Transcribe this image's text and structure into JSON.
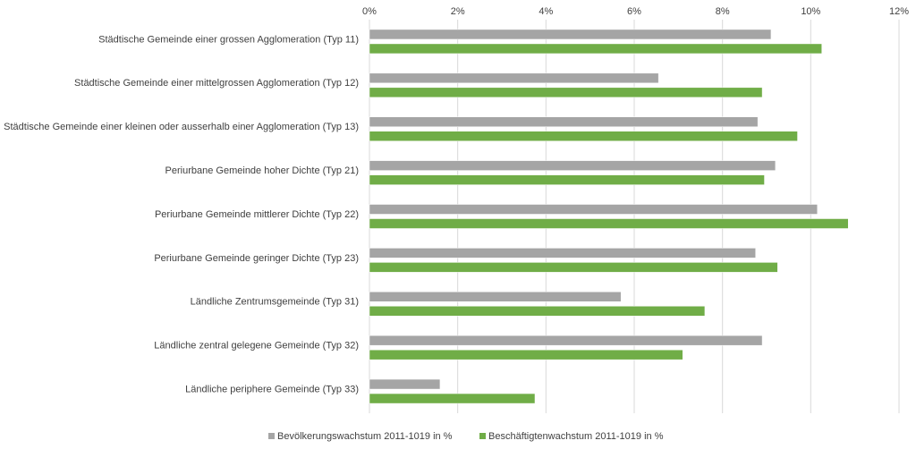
{
  "chart_data": {
    "type": "bar",
    "orientation": "horizontal",
    "categories": [
      "Städtische Gemeinde einer grossen Agglomeration (Typ 11)",
      "Städtische Gemeinde einer mittelgrossen Agglomeration (Typ 12)",
      "Städtische Gemeinde einer kleinen oder ausserhalb einer Agglomeration (Typ 13)",
      "Periurbane Gemeinde hoher Dichte (Typ 21)",
      "Periurbane Gemeinde mittlerer Dichte (Typ 22)",
      "Periurbane Gemeinde geringer Dichte (Typ 23)",
      "Ländliche Zentrumsgemeinde (Typ 31)",
      "Ländliche zentral gelegene Gemeinde (Typ 32)",
      "Ländliche periphere Gemeinde (Typ 33)"
    ],
    "series": [
      {
        "name": "Bevölkerungswachstum 2011-1019 in %",
        "color": "#a5a5a5",
        "values": [
          9.1,
          6.55,
          8.8,
          9.2,
          10.15,
          8.75,
          5.7,
          8.9,
          1.6
        ]
      },
      {
        "name": "Beschäftigtenwachstum 2011-1019 in %",
        "color": "#70ad47",
        "values": [
          10.25,
          8.9,
          9.7,
          8.95,
          10.85,
          9.25,
          7.6,
          7.1,
          3.75
        ]
      }
    ],
    "xlim": [
      0,
      12
    ],
    "x_ticks": [
      "0%",
      "2%",
      "4%",
      "6%",
      "8%",
      "10%",
      "12%"
    ],
    "x_axis_position": "top",
    "grid": true,
    "legend_position": "bottom",
    "title": "",
    "xlabel": "",
    "ylabel": ""
  }
}
